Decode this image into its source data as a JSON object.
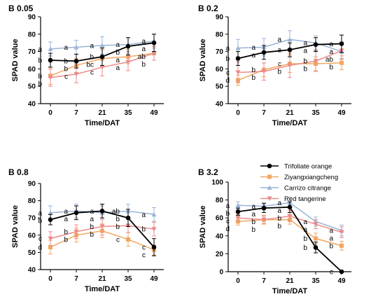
{
  "figure": {
    "legend": [
      {
        "name": "Trifoliate orange",
        "color": "#000000",
        "marker": "circle"
      },
      {
        "name": "Ziyangxiangcheng",
        "color": "#f0a860",
        "marker": "square"
      },
      {
        "name": "Carrizo citrange",
        "color": "#9ab4d8",
        "marker": "triangle"
      },
      {
        "name": "Red tangerine",
        "color": "#ec8a8a",
        "marker": "inverted-triangle"
      }
    ]
  },
  "chart_data": [
    {
      "type": "line",
      "title": "B 0.05",
      "xlabel": "Time/DAT",
      "ylabel": "SPAD value",
      "categories": [
        "0",
        "7",
        "21",
        "35",
        "49"
      ],
      "ylim": [
        40,
        90
      ],
      "yticks": [
        40,
        50,
        60,
        70,
        80,
        90
      ],
      "series": [
        {
          "name": "Trifoliate orange",
          "values": [
            65,
            64.5,
            67,
            73,
            75
          ],
          "errors": [
            4,
            4,
            5,
            5,
            5
          ],
          "labels": [
            "b",
            "b",
            "b",
            "b",
            "a"
          ]
        },
        {
          "name": "Ziyangxiangcheng",
          "values": [
            56,
            62,
            66,
            67,
            69
          ],
          "errors": [
            5,
            4,
            5,
            4,
            4
          ],
          "labels": [
            "b",
            "b",
            "bc",
            "a",
            "ab"
          ]
        },
        {
          "name": "Carrizo citrange",
          "values": [
            71.5,
            72.5,
            73.5,
            74,
            76
          ],
          "errors": [
            4,
            4,
            5,
            4,
            4
          ],
          "labels": [
            "a",
            "a",
            "a",
            "a",
            "a"
          ]
        },
        {
          "name": "Red tangerine",
          "values": [
            55,
            57,
            61,
            64,
            69
          ],
          "errors": [
            5,
            5,
            5,
            5,
            4
          ],
          "labels": [
            "b",
            "c",
            "c",
            "a",
            "b"
          ]
        }
      ]
    },
    {
      "type": "line",
      "title": "B 0.2",
      "xlabel": "Time/DAT",
      "ylabel": "SPAD value",
      "categories": [
        "0",
        "7",
        "21",
        "35",
        "49"
      ],
      "ylim": [
        40,
        90
      ],
      "yticks": [
        40,
        50,
        60,
        70,
        80,
        90
      ],
      "series": [
        {
          "name": "Trifoliate orange",
          "values": [
            66,
            69.5,
            71,
            74,
            74.5
          ],
          "errors": [
            4,
            4,
            4,
            4,
            5
          ],
          "labels": [
            "b",
            "a",
            "a",
            "a",
            "a"
          ]
        },
        {
          "name": "Ziyangxiangcheng",
          "values": [
            53.5,
            59.5,
            63,
            63,
            63.5
          ],
          "errors": [
            3,
            4,
            5,
            4,
            4
          ],
          "labels": [
            "d",
            "b",
            "c",
            "b",
            "b"
          ]
        },
        {
          "name": "Carrizo citrange",
          "values": [
            72,
            72.5,
            77,
            75,
            70
          ],
          "errors": [
            5,
            5,
            5,
            4,
            4
          ],
          "labels": [
            "a",
            "a",
            "a",
            "a",
            "ab"
          ]
        },
        {
          "name": "Red tangerine",
          "values": [
            58,
            58.5,
            62,
            64.5,
            70.5
          ],
          "errors": [
            6,
            5,
            7,
            6,
            5
          ],
          "labels": [
            "c",
            "b",
            "b",
            "b",
            "a"
          ]
        }
      ]
    },
    {
      "type": "line",
      "title": "B 0.8",
      "xlabel": "Time/DAT",
      "ylabel": "SPAD value",
      "categories": [
        "0",
        "7",
        "21",
        "35",
        "49"
      ],
      "ylim": [
        40,
        90
      ],
      "yticks": [
        40,
        50,
        60,
        70,
        80,
        90
      ],
      "series": [
        {
          "name": "Trifoliate orange",
          "values": [
            69,
            73,
            74,
            70,
            53
          ],
          "errors": [
            3,
            4,
            4,
            5,
            5
          ],
          "labels": [
            "b",
            "a",
            "a",
            "b",
            "c"
          ]
        },
        {
          "name": "Ziyangxiangcheng",
          "values": [
            53,
            60,
            62.5,
            57.5,
            51.5
          ],
          "errors": [
            4,
            4,
            4,
            4,
            3
          ],
          "labels": [
            "d",
            "b",
            "b",
            "c",
            "c"
          ]
        },
        {
          "name": "Carrizo citrange",
          "values": [
            73,
            74,
            73,
            74,
            72
          ],
          "errors": [
            4,
            4,
            4,
            4,
            4
          ],
          "labels": [
            "a",
            "a",
            "a",
            "ab",
            "a"
          ]
        },
        {
          "name": "Red tangerine",
          "values": [
            58,
            62,
            65,
            65.5,
            63.5
          ],
          "errors": [
            4,
            4,
            5,
            4,
            4
          ],
          "labels": [
            "c",
            "b",
            "b",
            "b",
            "b"
          ]
        }
      ]
    },
    {
      "type": "line",
      "title": "B 3.2",
      "xlabel": "Time/DAT",
      "ylabel": "SPAD value",
      "categories": [
        "0",
        "7",
        "21",
        "35",
        "49"
      ],
      "ylim": [
        0,
        100
      ],
      "yticks": [
        0,
        20,
        40,
        60,
        80,
        100
      ],
      "series": [
        {
          "name": "Trifoliate orange",
          "values": [
            67,
            71,
            72,
            27,
            0
          ],
          "errors": [
            4,
            5,
            6,
            6,
            1
          ],
          "labels": [
            "b",
            "a",
            "a",
            "b",
            "c"
          ]
        },
        {
          "name": "Ziyangxiangcheng",
          "values": [
            56,
            58,
            58,
            37,
            29
          ],
          "errors": [
            4,
            5,
            5,
            6,
            5
          ],
          "labels": [
            "d",
            "b",
            "b",
            "b",
            "b"
          ]
        },
        {
          "name": "Carrizo citrange",
          "values": [
            74,
            73,
            77,
            56,
            46
          ],
          "errors": [
            4,
            4,
            6,
            5,
            6
          ],
          "labels": [
            "a",
            "a",
            "a",
            "a",
            "a"
          ]
        },
        {
          "name": "Red tangerine",
          "values": [
            60,
            58,
            62,
            53,
            44
          ],
          "errors": [
            4,
            4,
            6,
            5,
            6
          ],
          "labels": [
            "c",
            "b",
            "b",
            "a",
            "a"
          ]
        }
      ]
    }
  ]
}
